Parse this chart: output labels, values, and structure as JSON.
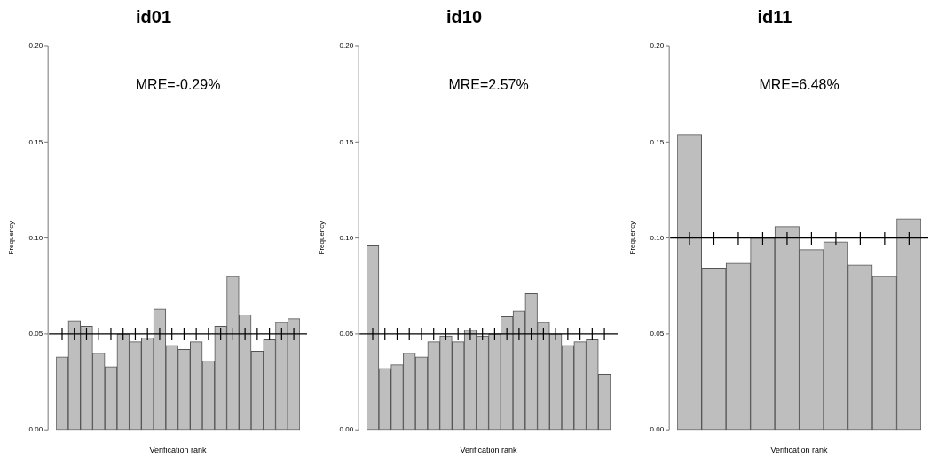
{
  "chart_data": [
    {
      "type": "bar",
      "title": "id01",
      "xlabel": "Verification rank",
      "ylabel": "Frequency",
      "annotations": [
        "MRE=-0.29%"
      ],
      "categories": [
        null,
        null,
        null,
        null,
        null,
        null,
        null,
        null,
        null,
        null,
        null,
        null,
        null,
        null,
        null,
        null,
        null,
        null,
        null,
        null
      ],
      "values": [
        0.038,
        0.057,
        0.054,
        0.04,
        0.033,
        0.05,
        0.046,
        0.048,
        0.063,
        0.044,
        0.042,
        0.046,
        0.036,
        0.054,
        0.08,
        0.06,
        0.041,
        0.047,
        0.056,
        0.058
      ],
      "color": "#bebebe",
      "ylim": [
        0,
        0.2
      ],
      "yticks": [
        {
          "value": 0,
          "label": "0.00"
        },
        {
          "value": 0.05,
          "label": "0.05"
        },
        {
          "value": 0.1,
          "label": "0.10"
        },
        {
          "value": 0.15,
          "label": "0.15"
        },
        {
          "value": 0.2,
          "label": "0.20"
        }
      ],
      "tick_labels": "y",
      "ref_lines": [
        {
          "axis": "y",
          "value": 0.05,
          "color": "#000000"
        }
      ]
    },
    {
      "type": "bar",
      "title": "id10",
      "xlabel": "Verification rank",
      "ylabel": "Frequency",
      "annotations": [
        "MRE=2.57%"
      ],
      "categories": [
        null,
        null,
        null,
        null,
        null,
        null,
        null,
        null,
        null,
        null,
        null,
        null,
        null,
        null,
        null,
        null,
        null,
        null,
        null,
        null
      ],
      "values": [
        0.096,
        0.032,
        0.034,
        0.04,
        0.038,
        0.046,
        0.049,
        0.046,
        0.052,
        0.049,
        0.05,
        0.059,
        0.062,
        0.071,
        0.056,
        0.05,
        0.044,
        0.046,
        0.047,
        0.029
      ],
      "color": "#bebebe",
      "ylim": [
        0,
        0.2
      ],
      "yticks": [
        {
          "value": 0,
          "label": "0.00"
        },
        {
          "value": 0.05,
          "label": "0.05"
        },
        {
          "value": 0.1,
          "label": "0.10"
        },
        {
          "value": 0.15,
          "label": "0.15"
        },
        {
          "value": 0.2,
          "label": "0.20"
        }
      ],
      "tick_labels": "y",
      "ref_lines": [
        {
          "axis": "y",
          "value": 0.05,
          "color": "#000000"
        }
      ]
    },
    {
      "type": "bar",
      "title": "id11",
      "xlabel": "Verification rank",
      "ylabel": "Frequency",
      "annotations": [
        "MRE=6.48%"
      ],
      "categories": [
        null,
        null,
        null,
        null,
        null,
        null,
        null,
        null,
        null,
        null
      ],
      "values": [
        0.154,
        0.084,
        0.087,
        0.1,
        0.106,
        0.094,
        0.098,
        0.086,
        0.08,
        0.11
      ],
      "color": "#bebebe",
      "ylim": [
        0,
        0.2
      ],
      "yticks": [
        {
          "value": 0,
          "label": "0.00"
        },
        {
          "value": 0.05,
          "label": "0.05"
        },
        {
          "value": 0.1,
          "label": "0.10"
        },
        {
          "value": 0.15,
          "label": "0.15"
        },
        {
          "value": 0.2,
          "label": "0.20"
        }
      ],
      "tick_labels": "y",
      "ref_lines": [
        {
          "axis": "y",
          "value": 0.1,
          "color": "#000000"
        }
      ]
    }
  ]
}
